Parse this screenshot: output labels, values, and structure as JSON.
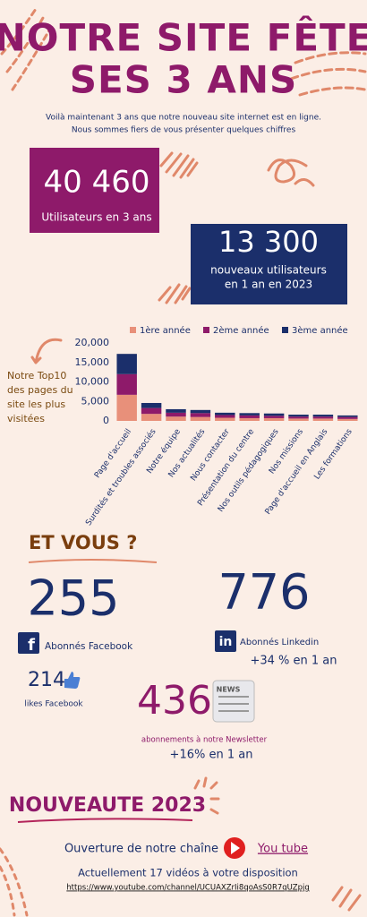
{
  "header": {
    "title_lines": [
      "NOTRE SITE FÊTE",
      "SES 3 ANS"
    ],
    "intro_lines": [
      "Voilà maintenant 3 ans que notre nouveau site internet est en ligne.",
      "Nous sommes fiers de vous présenter quelques chiffres"
    ]
  },
  "stats": {
    "users_total": "40 460",
    "users_total_label": "Utilisateurs en 3 ans",
    "users_new": "13 300",
    "users_new_label_lines": [
      "nouveaux utilisateurs",
      "en 1 an en 2023"
    ]
  },
  "chart_data": {
    "type": "stacked-bar",
    "annotation_lines": [
      "Notre Top10",
      "des pages du",
      "site les plus",
      "visitées"
    ],
    "categories": [
      "Page d'accueil",
      "Surdités et troubles associés",
      "Notre équipe",
      "Nos actualités",
      "Nous contacter",
      "Présentation du centre",
      "Nos outils pédagogiques",
      "Nos missions",
      "Page d'accueil en Anglais",
      "Les formations"
    ],
    "series": [
      {
        "name": "1ère année",
        "color": "#e8907a",
        "values": [
          6700,
          1800,
          1100,
          1000,
          800,
          700,
          700,
          600,
          600,
          500
        ]
      },
      {
        "name": "2ème année",
        "color": "#8e1a6a",
        "values": [
          5300,
          1500,
          1000,
          1000,
          700,
          700,
          600,
          500,
          500,
          500
        ]
      },
      {
        "name": "3ème année",
        "color": "#1b2f6b",
        "values": [
          5200,
          1300,
          900,
          800,
          600,
          600,
          600,
          500,
          500,
          400
        ]
      }
    ],
    "ylim": [
      0,
      20000
    ],
    "yticks": [
      0,
      {
        "value": 5000,
        "label": "5,000"
      },
      {
        "value": 10000,
        "label": "10,000"
      },
      {
        "value": 15000,
        "label": "15,000"
      },
      {
        "value": 20000,
        "label": "20,000"
      }
    ],
    "legend": "top"
  },
  "social": {
    "heading": "ET VOUS ?",
    "facebook_icon": "f",
    "facebook_count": "255",
    "facebook_label": "Abonnés Facebook",
    "linkedin_icon": "in",
    "linkedin_count": "776",
    "linkedin_label": "Abonnés Linkedin",
    "linkedin_growth": "+34 % en 1 an",
    "likes_count": "214",
    "likes_label": "likes Facebook",
    "news_icon": "NEWS",
    "newsletter_count": "436",
    "newsletter_label": "abonnements à notre Newsletter",
    "newsletter_growth": "+16% en 1 an"
  },
  "news": {
    "heading": "NOUVEAUTE 2023",
    "channel_text": "Ouverture de notre chaîne",
    "channel_name": "You tube",
    "videos_text": "Actuellement 17 vidéos à votre disposition",
    "url": "https://www.youtube.com/channel/UCUAXZrIi8qoAsS0R7qUZpjg"
  }
}
